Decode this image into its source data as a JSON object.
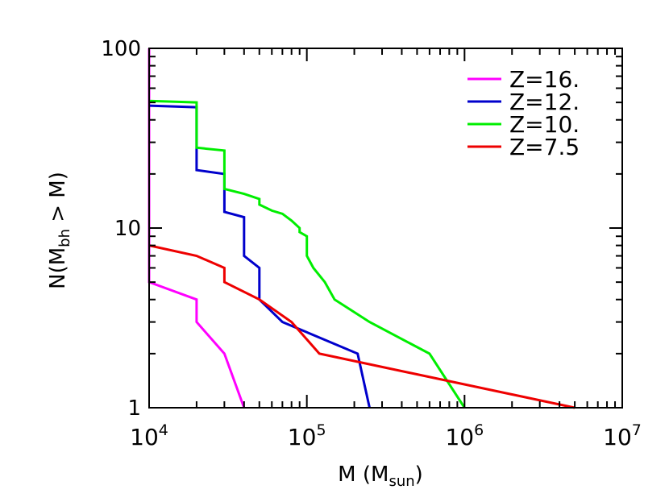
{
  "chart_data": {
    "type": "line",
    "x_scale": "log",
    "y_scale": "log",
    "xlim": [
      10000,
      10000000
    ],
    "ylim": [
      1,
      100
    ],
    "xlabel": {
      "main": "M (M",
      "sub": "sun",
      "close": ")"
    },
    "ylabel": {
      "pre": "N(M",
      "sub": "bh",
      "post": " > M)"
    },
    "x_ticks": [
      {
        "value": 10000,
        "base": "10",
        "exp": "4"
      },
      {
        "value": 100000,
        "base": "10",
        "exp": "5"
      },
      {
        "value": 1000000,
        "base": "10",
        "exp": "6"
      },
      {
        "value": 10000000,
        "base": "10",
        "exp": "7"
      }
    ],
    "y_ticks": [
      {
        "value": 1,
        "label": "1"
      },
      {
        "value": 10,
        "label": "10"
      },
      {
        "value": 100,
        "label": "100"
      }
    ],
    "grid": false,
    "legend_position": "top-right",
    "series": [
      {
        "name": "Z=16.",
        "color": "#ff00ff",
        "points": [
          [
            10000,
            100
          ],
          [
            10000,
            5
          ],
          [
            20000,
            4
          ],
          [
            20000,
            3
          ],
          [
            30000,
            2
          ],
          [
            40000,
            1
          ]
        ]
      },
      {
        "name": "Z=12.",
        "color": "#0000cc",
        "points": [
          [
            10000,
            48
          ],
          [
            20000,
            47
          ],
          [
            20000,
            21
          ],
          [
            30000,
            20
          ],
          [
            30000,
            12.3
          ],
          [
            40000,
            11.5
          ],
          [
            40000,
            7
          ],
          [
            50000,
            6
          ],
          [
            50000,
            4
          ],
          [
            70000,
            3
          ],
          [
            210000,
            2
          ],
          [
            250000,
            1
          ]
        ]
      },
      {
        "name": "Z=10.",
        "color": "#00ee00",
        "points": [
          [
            10000,
            51
          ],
          [
            20000,
            50
          ],
          [
            20000,
            28
          ],
          [
            30000,
            27
          ],
          [
            30000,
            16.5
          ],
          [
            40000,
            15.5
          ],
          [
            50000,
            14.5
          ],
          [
            50000,
            13.5
          ],
          [
            60000,
            12.5
          ],
          [
            70000,
            12
          ],
          [
            80000,
            11
          ],
          [
            90000,
            10
          ],
          [
            90000,
            9.5
          ],
          [
            100000,
            9
          ],
          [
            100000,
            7
          ],
          [
            110000,
            6
          ],
          [
            130000,
            5
          ],
          [
            150000,
            4
          ],
          [
            250000,
            3
          ],
          [
            600000,
            2
          ],
          [
            1000000,
            1
          ]
        ]
      },
      {
        "name": "Z=7.5",
        "color": "#ee0000",
        "points": [
          [
            10000,
            8
          ],
          [
            20000,
            7
          ],
          [
            30000,
            6
          ],
          [
            30000,
            5
          ],
          [
            50000,
            4
          ],
          [
            80000,
            3
          ],
          [
            120000,
            2
          ],
          [
            5000000,
            1
          ]
        ]
      }
    ]
  }
}
